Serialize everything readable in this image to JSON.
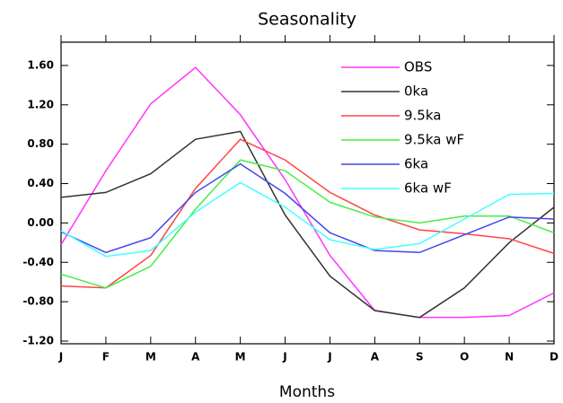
{
  "chart_data": {
    "type": "line",
    "title": "Seasonality",
    "x_label": "Months",
    "categories": [
      "J",
      "F",
      "M",
      "A",
      "M",
      "J",
      "J",
      "A",
      "S",
      "O",
      "N",
      "D"
    ],
    "ylim": [
      -1.2,
      1.8
    ],
    "yticks": [
      {
        "value": -1.2,
        "label": "-1.20"
      },
      {
        "value": -0.8,
        "label": "-0.80"
      },
      {
        "value": -0.4,
        "label": "-0.40"
      },
      {
        "value": 0,
        "label": "0.00"
      },
      {
        "value": 0.4,
        "label": "0.40"
      },
      {
        "value": 0.8,
        "label": "0.80"
      },
      {
        "value": 1.2,
        "label": "1.20"
      },
      {
        "value": 1.6,
        "label": "1.60"
      }
    ],
    "series": [
      {
        "name": "OBS",
        "color": "#ff33ff",
        "values": [
          -0.22,
          0.53,
          1.21,
          1.58,
          1.1,
          0.44,
          -0.33,
          -0.89,
          -0.96,
          -0.96,
          -0.94,
          -0.71
        ]
      },
      {
        "name": "0ka",
        "color": "#333333",
        "values": [
          0.26,
          0.31,
          0.5,
          0.85,
          0.93,
          0.08,
          -0.54,
          -0.89,
          -0.96,
          -0.66,
          -0.2,
          0.16
        ]
      },
      {
        "name": "9.5ka",
        "color": "#ff4444",
        "values": [
          -0.64,
          -0.66,
          -0.33,
          0.35,
          0.85,
          0.64,
          0.31,
          0.08,
          -0.07,
          -0.11,
          -0.16,
          -0.31
        ]
      },
      {
        "name": "9.5ka wF",
        "color": "#44ee44",
        "values": [
          -0.52,
          -0.66,
          -0.44,
          0.14,
          0.64,
          0.53,
          0.21,
          0.06,
          0.0,
          0.07,
          0.07,
          -0.1
        ]
      },
      {
        "name": "6ka",
        "color": "#4444ee",
        "values": [
          -0.09,
          -0.3,
          -0.15,
          0.31,
          0.6,
          0.3,
          -0.1,
          -0.28,
          -0.3,
          -0.12,
          0.06,
          0.04
        ]
      },
      {
        "name": "6ka wF",
        "color": "#44ffff",
        "values": [
          -0.08,
          -0.34,
          -0.28,
          0.11,
          0.41,
          0.16,
          -0.17,
          -0.27,
          -0.21,
          0.04,
          0.29,
          0.3
        ]
      }
    ]
  }
}
